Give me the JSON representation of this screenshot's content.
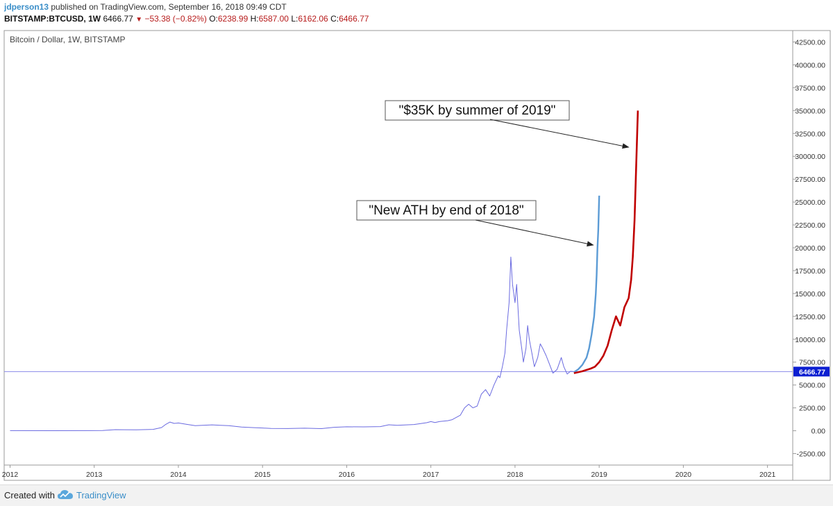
{
  "header": {
    "author": "jdperson13",
    "published_text": "published on TradingView.com, September 16, 2018 09:49 CDT",
    "symbol": "BITSTAMP:BTCUSD, 1W",
    "last": "6466.77",
    "change": "−53.38 (−0.82%)",
    "open_label": "O:",
    "open": "6238.99",
    "high_label": "H:",
    "high": "6587.00",
    "low_label": "L:",
    "low": "6162.06",
    "close_label": "C:",
    "close": "6466.77"
  },
  "footer": {
    "created_with": "Created with",
    "brand": "TradingView"
  },
  "colors": {
    "price_line": "#6a6ae0",
    "projection_ath": "#5b9bd5",
    "projection_35k": "#c00000",
    "last_price_label_bg": "#0c1fd1",
    "axis_text": "#333333"
  },
  "chart_data": {
    "type": "line",
    "title": "Bitcoin / Dollar, 1W, BITSTAMP",
    "ylim": [
      -3750,
      43750
    ],
    "y_ticks": [
      -2500,
      0,
      2500,
      5000,
      7500,
      10000,
      12500,
      15000,
      17500,
      20000,
      22500,
      25000,
      27500,
      30000,
      32500,
      35000,
      37500,
      40000,
      42500
    ],
    "y_tick_labels": [
      "-2500.00",
      "0.00",
      "2500.00",
      "5000.00",
      "7500.00",
      "10000.00",
      "12500.00",
      "15000.00",
      "17500.00",
      "20000.00",
      "22500.00",
      "25000.00",
      "27500.00",
      "30000.00",
      "32500.00",
      "35000.00",
      "37500.00",
      "40000.00",
      "42500.00"
    ],
    "xlim": [
      2011.93,
      2021.3
    ],
    "x_ticks": [
      2012,
      2013,
      2014,
      2015,
      2016,
      2017,
      2018,
      2019,
      2020,
      2021
    ],
    "x_tick_labels": [
      "2012",
      "2013",
      "2014",
      "2015",
      "2016",
      "2017",
      "2018",
      "2019",
      "2020",
      "2021"
    ],
    "last_price": 6466.77,
    "last_price_label": "6466.77",
    "series": [
      {
        "values": [
          [
            2012.0,
            10
          ],
          [
            2012.5,
            8
          ],
          [
            2012.95,
            13
          ],
          [
            2013.1,
            30
          ],
          [
            2013.25,
            120
          ],
          [
            2013.35,
            110
          ],
          [
            2013.5,
            95
          ],
          [
            2013.7,
            150
          ],
          [
            2013.8,
            350
          ],
          [
            2013.85,
            700
          ],
          [
            2013.9,
            950
          ],
          [
            2013.95,
            800
          ],
          [
            2014.0,
            850
          ],
          [
            2014.1,
            700
          ],
          [
            2014.2,
            550
          ],
          [
            2014.4,
            640
          ],
          [
            2014.5,
            600
          ],
          [
            2014.6,
            550
          ],
          [
            2014.75,
            400
          ],
          [
            2014.9,
            340
          ],
          [
            2015.0,
            300
          ],
          [
            2015.1,
            250
          ],
          [
            2015.3,
            240
          ],
          [
            2015.5,
            280
          ],
          [
            2015.7,
            235
          ],
          [
            2015.85,
            380
          ],
          [
            2016.0,
            430
          ],
          [
            2016.2,
            420
          ],
          [
            2016.4,
            450
          ],
          [
            2016.5,
            650
          ],
          [
            2016.6,
            600
          ],
          [
            2016.8,
            680
          ],
          [
            2016.95,
            880
          ],
          [
            2017.0,
            1000
          ],
          [
            2017.05,
            900
          ],
          [
            2017.1,
            1000
          ],
          [
            2017.2,
            1100
          ],
          [
            2017.25,
            1200
          ],
          [
            2017.35,
            1700
          ],
          [
            2017.4,
            2500
          ],
          [
            2017.45,
            2900
          ],
          [
            2017.5,
            2500
          ],
          [
            2017.55,
            2700
          ],
          [
            2017.6,
            4000
          ],
          [
            2017.65,
            4500
          ],
          [
            2017.7,
            3800
          ],
          [
            2017.75,
            5000
          ],
          [
            2017.8,
            6000
          ],
          [
            2017.82,
            5800
          ],
          [
            2017.85,
            7000
          ],
          [
            2017.88,
            8500
          ],
          [
            2017.9,
            11000
          ],
          [
            2017.93,
            14000
          ],
          [
            2017.95,
            19000
          ],
          [
            2017.97,
            16000
          ],
          [
            2018.0,
            14000
          ],
          [
            2018.02,
            16000
          ],
          [
            2018.05,
            11000
          ],
          [
            2018.08,
            9000
          ],
          [
            2018.1,
            7500
          ],
          [
            2018.13,
            9000
          ],
          [
            2018.15,
            11500
          ],
          [
            2018.17,
            10000
          ],
          [
            2018.2,
            8500
          ],
          [
            2018.23,
            7000
          ],
          [
            2018.27,
            8000
          ],
          [
            2018.3,
            9500
          ],
          [
            2018.33,
            9000
          ],
          [
            2018.37,
            8200
          ],
          [
            2018.4,
            7500
          ],
          [
            2018.45,
            6300
          ],
          [
            2018.5,
            6700
          ],
          [
            2018.55,
            8000
          ],
          [
            2018.58,
            7000
          ],
          [
            2018.62,
            6200
          ],
          [
            2018.66,
            6500
          ],
          [
            2018.7,
            6466
          ]
        ]
      },
      {
        "values": [
          [
            2018.7,
            6400
          ],
          [
            2018.75,
            6700
          ],
          [
            2018.8,
            7200
          ],
          [
            2018.85,
            8000
          ],
          [
            2018.88,
            9000
          ],
          [
            2018.91,
            10500
          ],
          [
            2018.94,
            12500
          ],
          [
            2018.96,
            15000
          ],
          [
            2018.97,
            17000
          ],
          [
            2018.98,
            20000
          ],
          [
            2018.99,
            22000
          ],
          [
            2019.0,
            25700
          ]
        ]
      },
      {
        "values": [
          [
            2018.7,
            6300
          ],
          [
            2018.8,
            6500
          ],
          [
            2018.9,
            6800
          ],
          [
            2018.95,
            7000
          ],
          [
            2019.0,
            7500
          ],
          [
            2019.05,
            8200
          ],
          [
            2019.1,
            9300
          ],
          [
            2019.15,
            11000
          ],
          [
            2019.2,
            12500
          ],
          [
            2019.25,
            11500
          ],
          [
            2019.3,
            13500
          ],
          [
            2019.35,
            14500
          ],
          [
            2019.38,
            16500
          ],
          [
            2019.4,
            19000
          ],
          [
            2019.42,
            23000
          ],
          [
            2019.44,
            29000
          ],
          [
            2019.46,
            35000
          ]
        ]
      }
    ],
    "annotations": [
      {
        "text": "\"$35K by summer of 2019\"",
        "arrow_to": [
          2019.35,
          31000
        ]
      },
      {
        "text": "\"New ATH by end of 2018\"",
        "arrow_to": [
          2018.93,
          20300
        ]
      }
    ]
  }
}
